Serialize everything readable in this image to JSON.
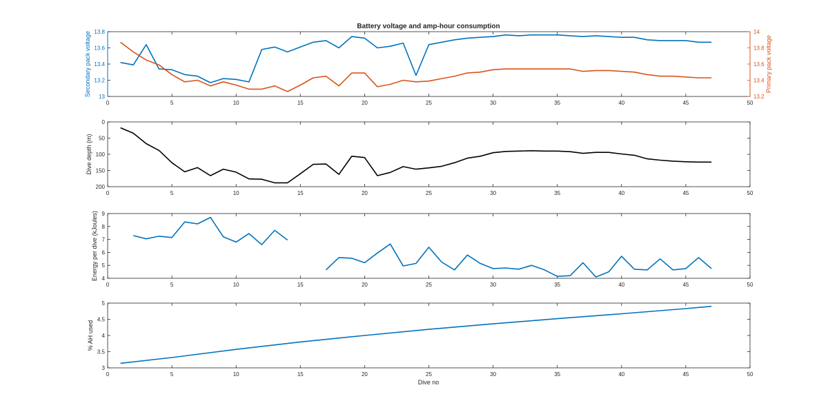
{
  "figure": {
    "title": "Battery voltage and amp-hour consumption",
    "xlabel": "Dive no"
  },
  "colors": {
    "blue": "#0072BD",
    "orange": "#D95319",
    "black": "#000000",
    "axis": "#262626",
    "grid": "#cccccc"
  },
  "chart_data": [
    {
      "type": "line",
      "ylabel": "Secondary pack voltage",
      "ylabel_right": "Primary pack voltage",
      "xlim": [
        0,
        50
      ],
      "ylim": [
        13,
        13.8
      ],
      "ylim_right": [
        13.2,
        14
      ],
      "grid": false,
      "x_ticks": [
        "0",
        "5",
        "10",
        "15",
        "20",
        "25",
        "30",
        "35",
        "40",
        "45",
        "50"
      ],
      "y_ticks": [
        "13",
        "13.2",
        "13.4",
        "13.6",
        "13.8"
      ],
      "y_ticks_right": [
        "13.2",
        "13.4",
        "13.6",
        "13.8",
        "14"
      ],
      "series": [
        {
          "axis": "left",
          "color": "#0072BD",
          "x": [
            1,
            2,
            3,
            4,
            5,
            6,
            7,
            8,
            9,
            10,
            11,
            12,
            13,
            14,
            15,
            16,
            17,
            18,
            19,
            20,
            21,
            22,
            23,
            24,
            25,
            26,
            27,
            28,
            29,
            30,
            31,
            32,
            33,
            34,
            35,
            36,
            37,
            38,
            39,
            40,
            41,
            42,
            43,
            44,
            45,
            46,
            47
          ],
          "y": [
            13.42,
            13.39,
            13.64,
            13.34,
            13.33,
            13.27,
            13.25,
            13.17,
            13.22,
            13.21,
            13.18,
            13.58,
            13.61,
            13.55,
            13.61,
            13.67,
            13.69,
            13.6,
            13.74,
            13.72,
            13.6,
            13.62,
            13.66,
            13.26,
            13.64,
            13.67,
            13.7,
            13.72,
            13.73,
            13.74,
            13.76,
            13.75,
            13.76,
            13.76,
            13.76,
            13.75,
            13.74,
            13.75,
            13.74,
            13.73,
            13.73,
            13.7,
            13.69,
            13.69,
            13.69,
            13.67,
            13.67
          ]
        },
        {
          "axis": "right",
          "color": "#D95319",
          "x": [
            1,
            2,
            3,
            4,
            5,
            6,
            7,
            8,
            9,
            10,
            11,
            12,
            13,
            14,
            15,
            16,
            17,
            18,
            19,
            20,
            21,
            22,
            23,
            24,
            25,
            26,
            27,
            28,
            29,
            30,
            31,
            32,
            33,
            34,
            35,
            36,
            37,
            38,
            39,
            40,
            41,
            42,
            43,
            44,
            45,
            46,
            47
          ],
          "y": [
            13.87,
            13.75,
            13.65,
            13.59,
            13.47,
            13.38,
            13.4,
            13.33,
            13.38,
            13.34,
            13.29,
            13.29,
            13.33,
            13.26,
            13.34,
            13.43,
            13.45,
            13.33,
            13.49,
            13.49,
            13.32,
            13.35,
            13.4,
            13.38,
            13.39,
            13.42,
            13.45,
            13.49,
            13.5,
            13.53,
            13.54,
            13.54,
            13.54,
            13.54,
            13.54,
            13.54,
            13.51,
            13.52,
            13.52,
            13.51,
            13.5,
            13.47,
            13.45,
            13.45,
            13.44,
            13.43,
            13.43
          ]
        }
      ]
    },
    {
      "type": "line",
      "ylabel": "Dive depth (m)",
      "xlim": [
        0,
        50
      ],
      "ylim": [
        0,
        200
      ],
      "y_reversed": true,
      "grid": false,
      "x_ticks": [
        "0",
        "5",
        "10",
        "15",
        "20",
        "25",
        "30",
        "35",
        "40",
        "45",
        "50"
      ],
      "y_ticks": [
        "0",
        "50",
        "100",
        "150",
        "200"
      ],
      "series": [
        {
          "color": "#000000",
          "x": [
            1,
            2,
            3,
            4,
            5,
            6,
            7,
            8,
            9,
            10,
            11,
            12,
            13,
            14,
            15,
            16,
            17,
            18,
            19,
            20,
            21,
            22,
            23,
            24,
            25,
            26,
            27,
            28,
            29,
            30,
            31,
            32,
            33,
            34,
            35,
            36,
            37,
            38,
            39,
            40,
            41,
            42,
            43,
            44,
            45,
            46,
            47
          ],
          "y": [
            18,
            35,
            67,
            88,
            126,
            154,
            141,
            166,
            146,
            155,
            176,
            177,
            188,
            188,
            160,
            131,
            130,
            162,
            106,
            110,
            166,
            156,
            138,
            146,
            142,
            137,
            126,
            112,
            106,
            95,
            91,
            90,
            89,
            90,
            90,
            92,
            97,
            94,
            94,
            99,
            103,
            114,
            118,
            121,
            123,
            124,
            124
          ]
        }
      ]
    },
    {
      "type": "line",
      "ylabel": "Energy per dive (kJoules)",
      "xlim": [
        0,
        50
      ],
      "ylim": [
        4,
        9
      ],
      "grid": false,
      "x_ticks": [
        "0",
        "5",
        "10",
        "15",
        "20",
        "25",
        "30",
        "35",
        "40",
        "45",
        "50"
      ],
      "y_ticks": [
        "4",
        "5",
        "6",
        "7",
        "8",
        "9"
      ],
      "series": [
        {
          "color": "#0072BD",
          "x": [
            2,
            3,
            4,
            5,
            6,
            7,
            8,
            9,
            10,
            11,
            12,
            13,
            14,
            15,
            16,
            17,
            18,
            19,
            20,
            21,
            22,
            23,
            24,
            25,
            26,
            27,
            28,
            29,
            30,
            31,
            32,
            33,
            34,
            35,
            36,
            37,
            38,
            39,
            40,
            41,
            42,
            43,
            44,
            45,
            46,
            47
          ],
          "y": [
            7.3,
            7.05,
            7.25,
            7.15,
            8.35,
            8.2,
            8.7,
            7.2,
            6.8,
            7.45,
            6.6,
            7.7,
            6.95,
            null,
            null,
            4.65,
            5.6,
            5.55,
            5.2,
            5.95,
            6.65,
            4.95,
            5.15,
            6.4,
            5.25,
            4.65,
            5.8,
            5.15,
            4.75,
            4.8,
            4.7,
            5.0,
            4.65,
            4.15,
            4.2,
            5.2,
            4.1,
            4.5,
            5.7,
            4.7,
            4.65,
            5.5,
            4.65,
            4.75,
            5.6,
            4.75
          ]
        }
      ]
    },
    {
      "type": "line",
      "ylabel": "% AH used",
      "xlim": [
        0,
        50
      ],
      "ylim": [
        3,
        5
      ],
      "grid": false,
      "x_ticks": [
        "0",
        "5",
        "10",
        "15",
        "20",
        "25",
        "30",
        "35",
        "40",
        "45",
        "50"
      ],
      "y_ticks": [
        "3",
        "3.5",
        "4",
        "4.5",
        "5"
      ],
      "series": [
        {
          "color": "#0072BD",
          "x": [
            1,
            5,
            10,
            15,
            20,
            25,
            30,
            35,
            40,
            45,
            47
          ],
          "y": [
            3.14,
            3.32,
            3.57,
            3.8,
            4.0,
            4.19,
            4.36,
            4.52,
            4.67,
            4.83,
            4.9
          ]
        }
      ]
    }
  ]
}
